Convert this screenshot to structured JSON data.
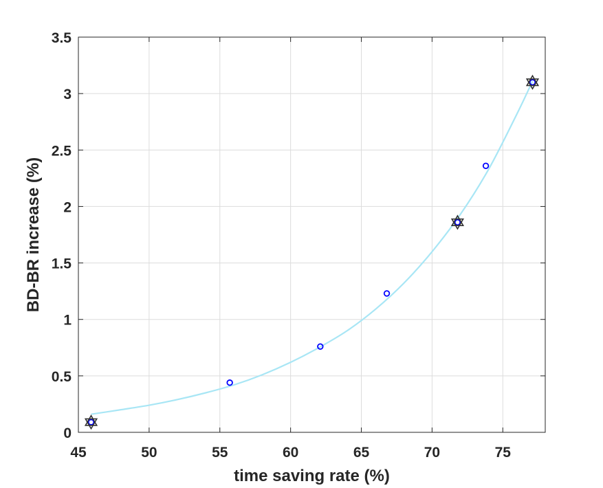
{
  "chart_data": {
    "type": "scatter",
    "title": "",
    "xlabel": "time saving rate (%)",
    "ylabel": "BD-BR increase (%)",
    "xlim": [
      45,
      78
    ],
    "ylim": [
      0,
      3.5
    ],
    "xticks": [
      45,
      50,
      55,
      60,
      65,
      70,
      75
    ],
    "yticks": [
      0,
      0.5,
      1,
      1.5,
      2,
      2.5,
      3,
      3.5
    ],
    "xtick_labels": [
      "45",
      "50",
      "55",
      "60",
      "65",
      "70",
      "75"
    ],
    "ytick_labels": [
      "0",
      "0.5",
      "1",
      "1.5",
      "2",
      "2.5",
      "3",
      "3.5"
    ],
    "grid": true,
    "series": [
      {
        "marker": "circle",
        "color": "#0000ff",
        "x": [
          45.9,
          55.7,
          62.1,
          66.8,
          71.8,
          73.8,
          77.1
        ],
        "y": [
          0.09,
          0.44,
          0.76,
          1.23,
          1.86,
          2.36,
          3.1
        ]
      },
      {
        "marker": "hexagram",
        "color": "#333333",
        "x": [
          45.9,
          71.8,
          77.1
        ],
        "y": [
          0.09,
          1.86,
          3.1
        ]
      },
      {
        "type": "line",
        "color": "#a8e6f5",
        "x": [
          45.9,
          48,
          50,
          52,
          54,
          56,
          58,
          60,
          62,
          64,
          66,
          68,
          70,
          72,
          74,
          76,
          77.1
        ],
        "y": [
          0.16,
          0.2,
          0.24,
          0.29,
          0.35,
          0.42,
          0.51,
          0.62,
          0.75,
          0.9,
          1.09,
          1.32,
          1.6,
          1.93,
          2.33,
          2.82,
          3.11
        ]
      }
    ]
  }
}
